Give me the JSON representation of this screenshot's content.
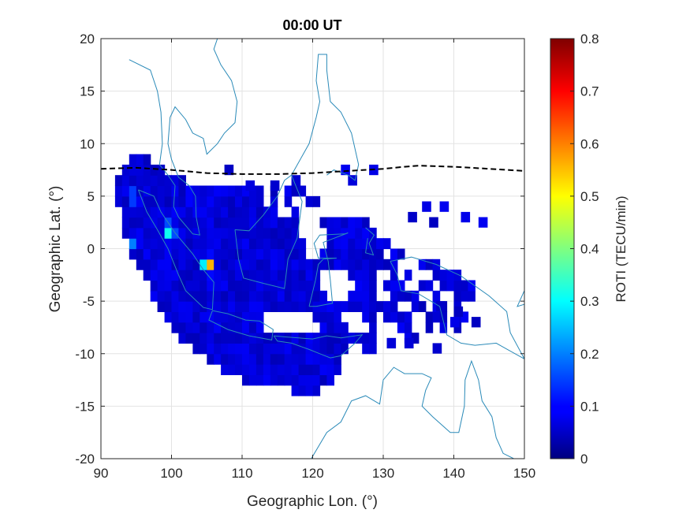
{
  "chart_data": {
    "type": "heatmap",
    "title": "00:00 UT",
    "xlabel": "Geographic Lon. (°)",
    "ylabel": "Geographic Lat. (°)",
    "xlim": [
      90,
      150
    ],
    "ylim": [
      -20,
      20
    ],
    "xticks": [
      "90",
      "100",
      "110",
      "120",
      "130",
      "140",
      "150"
    ],
    "yticks": [
      "20",
      "15",
      "10",
      "5",
      "0",
      "-5",
      "-10",
      "-15",
      "-20"
    ],
    "grid": true,
    "colorbar": {
      "label": "ROTI (TECU/min)",
      "min": 0,
      "max": 0.8,
      "ticks": [
        "0",
        "0.1",
        "0.2",
        "0.3",
        "0.4",
        "0.5",
        "0.6",
        "0.7",
        "0.8"
      ],
      "colormap": "jet"
    },
    "hotspots": [
      {
        "lon": 105.2,
        "lat": -1.5,
        "roti": 0.65
      },
      {
        "lon": 99.8,
        "lat": 1.8,
        "roti": 0.42
      },
      {
        "lon": 94.5,
        "lat": 5.0,
        "roti": 0.22
      },
      {
        "lon": 94.5,
        "lat": 0.5,
        "roti": 0.2
      },
      {
        "lon": 102.5,
        "lat": 5.0,
        "roti": 0.15
      }
    ],
    "background_roti": 0.07,
    "magnetic_equator": [
      [
        90,
        7.6
      ],
      [
        95,
        7.7
      ],
      [
        100,
        7.5
      ],
      [
        105,
        7.2
      ],
      [
        110,
        7.1
      ],
      [
        115,
        7.1
      ],
      [
        120,
        7.2
      ],
      [
        125,
        7.4
      ],
      [
        130,
        7.6
      ],
      [
        133,
        7.8
      ],
      [
        135,
        7.9
      ],
      [
        140,
        7.8
      ],
      [
        145,
        7.6
      ],
      [
        150,
        7.4
      ]
    ]
  }
}
